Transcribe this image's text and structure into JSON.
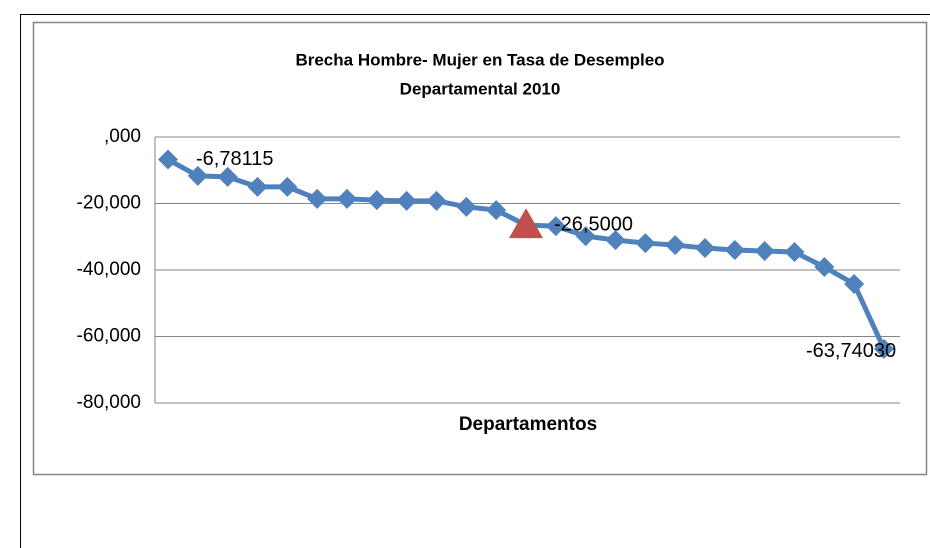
{
  "chart_data": {
    "type": "line",
    "title": [
      "Brecha Hombre- Mujer en Tasa de Desempleo",
      "Departamental 2010"
    ],
    "x_label": "Departamentos",
    "categories": [
      null,
      null,
      null,
      null,
      null,
      null,
      null,
      null,
      null,
      null,
      null,
      null,
      null,
      null,
      null,
      null,
      null,
      null,
      null,
      null,
      null,
      null,
      null,
      null,
      null
    ],
    "series": [
      {
        "color": "#4f81bd",
        "values": [
          -6.78115,
          -11.7,
          -12.0,
          -15.0,
          -15.0,
          -18.6,
          -18.6,
          -19.0,
          -19.2,
          -19.2,
          -21.0,
          -22.0,
          -26.5,
          -26.8,
          -29.8,
          -31.0,
          -31.9,
          -32.5,
          -33.4,
          -34.0,
          -34.3,
          -34.6,
          -39.1,
          -44.2,
          -63.7403
        ],
        "value_labels": [
          "-6,78115",
          null,
          null,
          null,
          null,
          null,
          null,
          null,
          null,
          null,
          null,
          null,
          "-26,5000",
          null,
          null,
          null,
          null,
          null,
          null,
          null,
          null,
          null,
          null,
          null,
          "-63,74030"
        ],
        "highlight": {
          "index": 12,
          "color": "#c0504d",
          "marker": "triangle"
        }
      }
    ],
    "ylim": [
      -80,
      0
    ],
    "yticks": [
      {
        "value": 0,
        "label": ",000"
      },
      {
        "value": -20,
        "label": "-20,000"
      },
      {
        "value": -40,
        "label": "-40,000"
      },
      {
        "value": -60,
        "label": "-60,000"
      },
      {
        "value": -80,
        "label": "-80,000"
      }
    ],
    "grid": true
  }
}
